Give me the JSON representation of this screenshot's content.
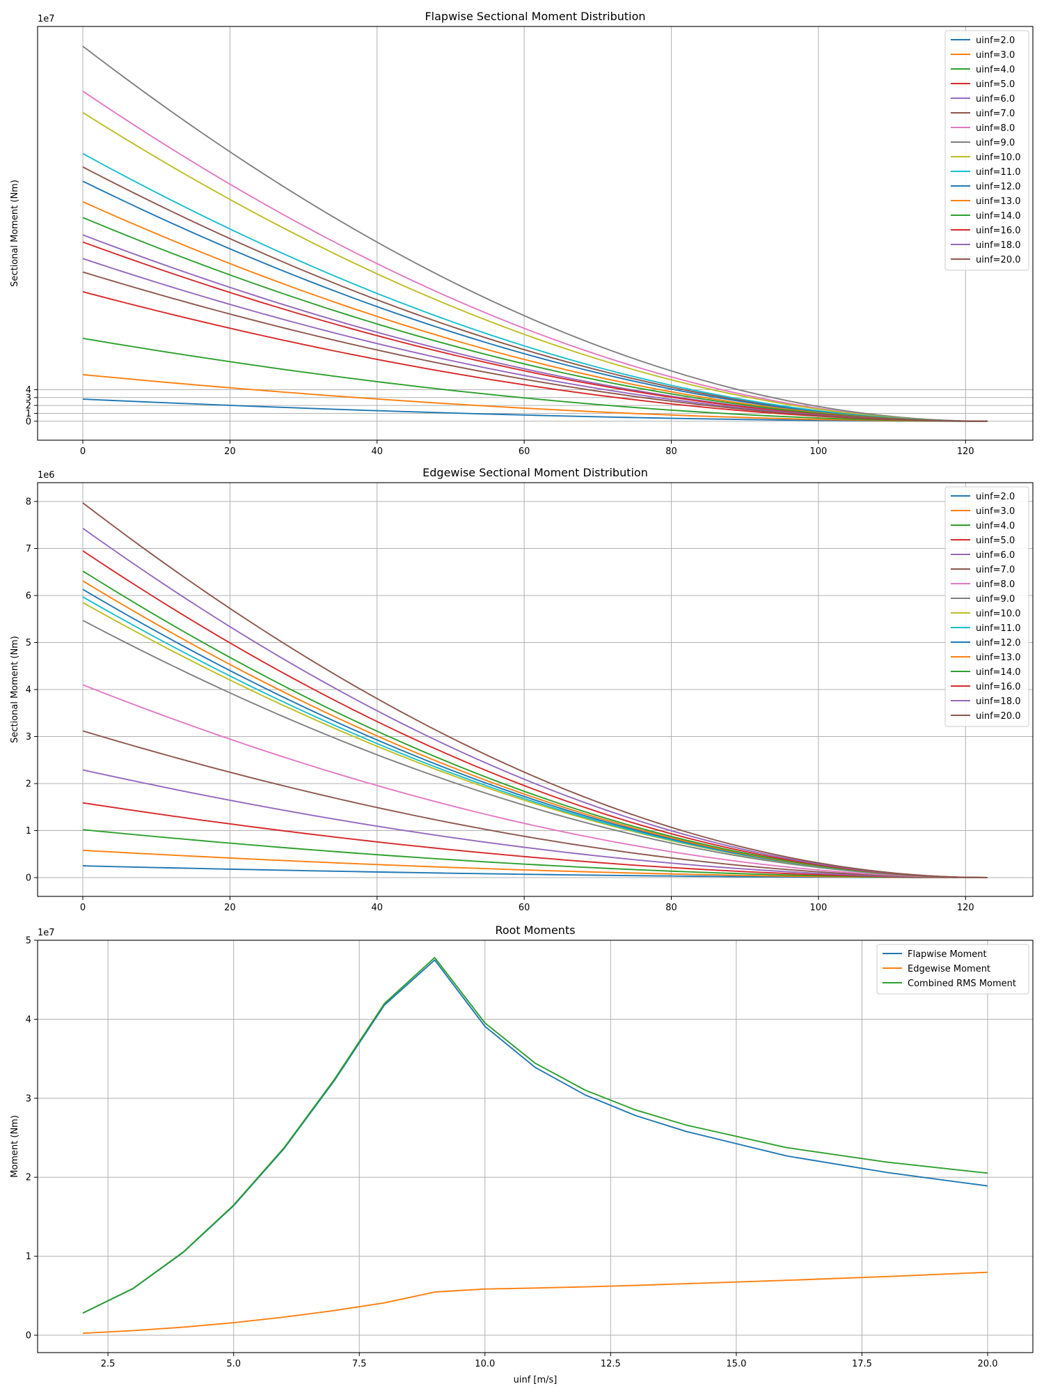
{
  "figure": {
    "colors": [
      "#1f77b4",
      "#ff7f0e",
      "#2ca02c",
      "#d62728",
      "#9467bd",
      "#8c564b",
      "#e377c2",
      "#7f7f7f",
      "#bcbd22",
      "#17becf"
    ]
  },
  "chart_data": [
    {
      "type": "line",
      "title": "Flapwise Sectional Moment Distribution",
      "xlabel": "",
      "ylabel": "Sectional Moment (Nm)",
      "scale_label": "1e7",
      "scale": 10000000,
      "xlim": [
        -6.15,
        129.15
      ],
      "ylim": [
        -2.4,
        50.0
      ],
      "xticks": [
        0,
        20,
        40,
        60,
        80,
        100,
        120
      ],
      "xtick_labels": [
        "0",
        "20",
        "40",
        "60",
        "80",
        "100",
        "120"
      ],
      "yticks": [
        0,
        1,
        2,
        3,
        4
      ],
      "ytick_labels": [
        "0",
        "1",
        "2",
        "3",
        "4"
      ],
      "grid": true,
      "legend": "upper right",
      "profile": "sectional",
      "x_end": 123,
      "series": [
        {
          "name": "uinf=2.0",
          "root": 2.8
        },
        {
          "name": "uinf=3.0",
          "root": 5.9
        },
        {
          "name": "uinf=4.0",
          "root": 10.5
        },
        {
          "name": "uinf=5.0",
          "root": 16.4
        },
        {
          "name": "uinf=6.0",
          "root": 23.6
        },
        {
          "name": "uinf=7.0",
          "root": 32.2
        },
        {
          "name": "uinf=8.0",
          "root": 41.8
        },
        {
          "name": "uinf=9.0",
          "root": 47.5
        },
        {
          "name": "uinf=10.0",
          "root": 39.1
        },
        {
          "name": "uinf=11.0",
          "root": 33.9
        },
        {
          "name": "uinf=12.0",
          "root": 30.4
        },
        {
          "name": "uinf=13.0",
          "root": 27.8
        },
        {
          "name": "uinf=14.0",
          "root": 25.8
        },
        {
          "name": "uinf=16.0",
          "root": 22.7
        },
        {
          "name": "uinf=18.0",
          "root": 20.6
        },
        {
          "name": "uinf=20.0",
          "root": 18.9
        }
      ]
    },
    {
      "type": "line",
      "title": "Edgewise Sectional Moment Distribution",
      "xlabel": "",
      "ylabel": "Sectional Moment (Nm)",
      "scale_label": "1e6",
      "scale": 1000000,
      "xlim": [
        -6.15,
        129.15
      ],
      "ylim": [
        -0.4,
        8.4
      ],
      "xticks": [
        0,
        20,
        40,
        60,
        80,
        100,
        120
      ],
      "xtick_labels": [
        "0",
        "20",
        "40",
        "60",
        "80",
        "100",
        "120"
      ],
      "yticks": [
        0,
        1,
        2,
        3,
        4,
        5,
        6,
        7,
        8
      ],
      "ytick_labels": [
        "0",
        "1",
        "2",
        "3",
        "4",
        "5",
        "6",
        "7",
        "8"
      ],
      "grid": true,
      "legend": "upper right",
      "profile": "sectional",
      "x_end": 123,
      "series": [
        {
          "name": "uinf=2.0",
          "root": 0.25
        },
        {
          "name": "uinf=3.0",
          "root": 0.58
        },
        {
          "name": "uinf=4.0",
          "root": 1.02
        },
        {
          "name": "uinf=5.0",
          "root": 1.59
        },
        {
          "name": "uinf=6.0",
          "root": 2.29
        },
        {
          "name": "uinf=7.0",
          "root": 3.12
        },
        {
          "name": "uinf=8.0",
          "root": 4.1
        },
        {
          "name": "uinf=9.0",
          "root": 5.47
        },
        {
          "name": "uinf=10.0",
          "root": 5.85
        },
        {
          "name": "uinf=11.0",
          "root": 5.97
        },
        {
          "name": "uinf=12.0",
          "root": 6.13
        },
        {
          "name": "uinf=13.0",
          "root": 6.31
        },
        {
          "name": "uinf=14.0",
          "root": 6.52
        },
        {
          "name": "uinf=16.0",
          "root": 6.95
        },
        {
          "name": "uinf=18.0",
          "root": 7.43
        },
        {
          "name": "uinf=20.0",
          "root": 7.97
        }
      ]
    },
    {
      "type": "line",
      "title": "Root Moments",
      "xlabel": "uinf [m/s]",
      "ylabel": "Moment (Nm)",
      "scale_label": "1e7",
      "scale": 10000000,
      "xlim": [
        1.1,
        20.9
      ],
      "ylim": [
        -0.22,
        5.0
      ],
      "xticks": [
        2.5,
        5.0,
        7.5,
        10.0,
        12.5,
        15.0,
        17.5,
        20.0
      ],
      "xtick_labels": [
        "2.5",
        "5.0",
        "7.5",
        "10.0",
        "12.5",
        "15.0",
        "17.5",
        "20.0"
      ],
      "yticks": [
        0,
        1,
        2,
        3,
        4,
        5
      ],
      "ytick_labels": [
        "0",
        "1",
        "2",
        "3",
        "4",
        "5"
      ],
      "grid": true,
      "legend": "upper right",
      "profile": "points",
      "x": [
        2,
        3,
        4,
        5,
        6,
        7,
        8,
        9,
        10,
        11,
        12,
        13,
        14,
        16,
        18,
        20
      ],
      "series": [
        {
          "name": "Flapwise Moment",
          "values": [
            0.28,
            0.59,
            1.05,
            1.64,
            2.36,
            3.22,
            4.18,
            4.75,
            3.91,
            3.39,
            3.04,
            2.78,
            2.58,
            2.27,
            2.06,
            1.89
          ]
        },
        {
          "name": "Edgewise Moment",
          "values": [
            0.025,
            0.058,
            0.102,
            0.159,
            0.229,
            0.312,
            0.41,
            0.547,
            0.585,
            0.597,
            0.613,
            0.631,
            0.652,
            0.695,
            0.743,
            0.797
          ]
        },
        {
          "name": "Combined RMS Moment",
          "values": [
            0.281,
            0.593,
            1.055,
            1.648,
            2.371,
            3.235,
            4.2,
            4.781,
            3.953,
            3.443,
            3.101,
            2.851,
            2.661,
            2.375,
            2.191,
            2.052
          ]
        }
      ]
    }
  ]
}
